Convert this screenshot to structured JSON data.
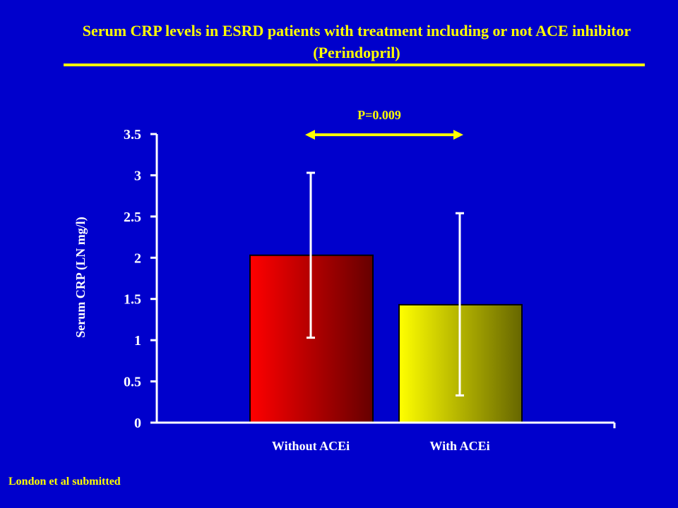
{
  "slide": {
    "title": "Serum CRP levels in ESRD patients with treatment including or not ACE inhibitor (Perindopril)",
    "footnote": "London et al submitted",
    "title_color": "#FFFF00",
    "background": "#0000CC"
  },
  "chart_data": {
    "type": "bar",
    "categories": [
      "Without ACEi",
      "With ACEi"
    ],
    "values": [
      2.03,
      1.43
    ],
    "error_low": [
      1.03,
      0.33
    ],
    "error_high": [
      3.03,
      2.54
    ],
    "bar_colors": [
      [
        "#FF0000",
        "#660000"
      ],
      [
        "#FFFF00",
        "#666600"
      ]
    ],
    "ylabel": "Serum CRP (LN mg/l)",
    "ylim": [
      0,
      3.5
    ],
    "yticks": [
      "0",
      "0.5",
      "1",
      "1.5",
      "2",
      "2.5",
      "3",
      "3.5"
    ],
    "annotation": "P=0.009",
    "grid": false
  }
}
